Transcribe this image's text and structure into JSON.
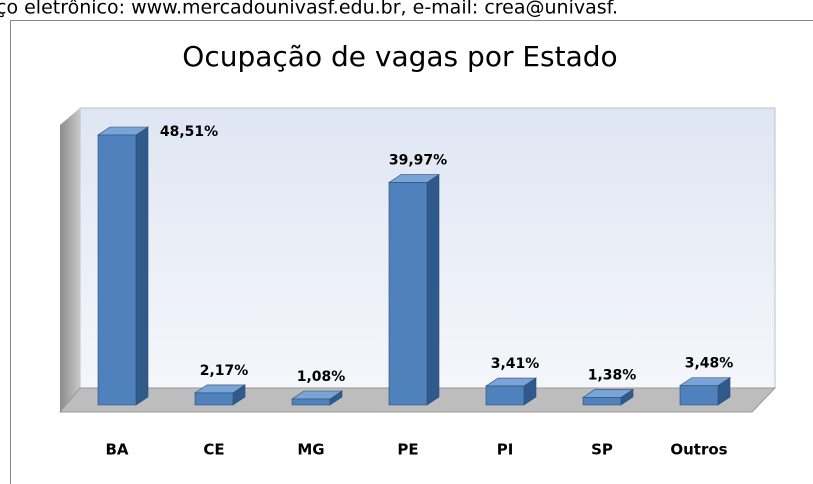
{
  "header_text": "ço eletrônico: www.mercadounivasf.edu.br, e-mail: crea@univasf.",
  "chart_data": {
    "type": "bar3d",
    "title": "Ocupação de vagas por Estado",
    "categories": [
      "BA",
      "CE",
      "MG",
      "PE",
      "PI",
      "SP",
      "Outros"
    ],
    "values": [
      48.51,
      2.17,
      1.08,
      39.97,
      3.41,
      1.38,
      3.48
    ],
    "value_labels": [
      "48,51%",
      "2,17%",
      "1,08%",
      "39,97%",
      "3,41%",
      "1,38%",
      "3,48%"
    ],
    "color": "#4f81bd"
  }
}
